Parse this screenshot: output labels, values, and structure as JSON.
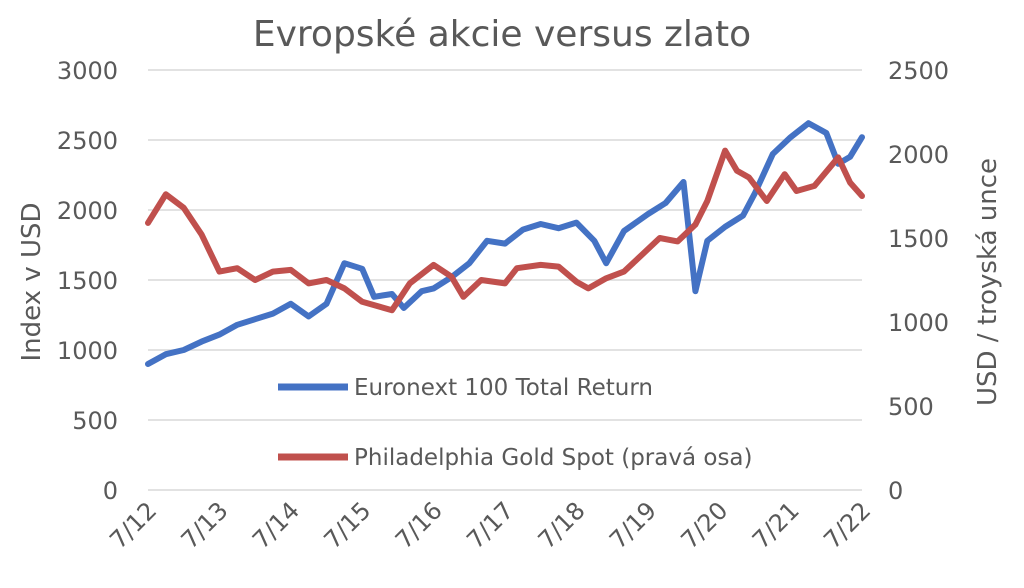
{
  "chart_data": {
    "type": "line",
    "title": "Evropské akcie versus zlato",
    "ylabel": "Index v USD",
    "y2label": "USD / troyská unce",
    "ylim": [
      0,
      3000
    ],
    "y2lim": [
      0,
      2500
    ],
    "yticks": [
      "0",
      "500",
      "1000",
      "1500",
      "2000",
      "2500",
      "3000"
    ],
    "y2ticks": [
      "0",
      "500",
      "1000",
      "1500",
      "2000",
      "2500"
    ],
    "xlim": [
      "2012-07",
      "2022-07"
    ],
    "xticks": [
      "7/12",
      "7/13",
      "7/14",
      "7/15",
      "7/16",
      "7/17",
      "7/18",
      "7/19",
      "7/20",
      "7/21",
      "7/22"
    ],
    "grid": "horizontal",
    "legend_position": "inside-bottom-center",
    "series": [
      {
        "name": "Euronext 100 Total Return",
        "axis": "left",
        "color": "#4472C4",
        "points": [
          [
            "2012-07",
            900
          ],
          [
            "2012-10",
            970
          ],
          [
            "2013-01",
            1000
          ],
          [
            "2013-04",
            1060
          ],
          [
            "2013-07",
            1110
          ],
          [
            "2013-10",
            1180
          ],
          [
            "2014-01",
            1220
          ],
          [
            "2014-04",
            1260
          ],
          [
            "2014-07",
            1330
          ],
          [
            "2014-10",
            1240
          ],
          [
            "2015-01",
            1330
          ],
          [
            "2015-04",
            1620
          ],
          [
            "2015-07",
            1580
          ],
          [
            "2015-09",
            1380
          ],
          [
            "2015-12",
            1400
          ],
          [
            "2016-02",
            1300
          ],
          [
            "2016-05",
            1420
          ],
          [
            "2016-07",
            1440
          ],
          [
            "2016-10",
            1520
          ],
          [
            "2017-01",
            1620
          ],
          [
            "2017-04",
            1780
          ],
          [
            "2017-07",
            1760
          ],
          [
            "2017-10",
            1860
          ],
          [
            "2018-01",
            1900
          ],
          [
            "2018-04",
            1870
          ],
          [
            "2018-07",
            1910
          ],
          [
            "2018-10",
            1780
          ],
          [
            "2018-12",
            1620
          ],
          [
            "2019-03",
            1850
          ],
          [
            "2019-07",
            1970
          ],
          [
            "2019-10",
            2050
          ],
          [
            "2020-01",
            2200
          ],
          [
            "2020-03",
            1420
          ],
          [
            "2020-05",
            1780
          ],
          [
            "2020-08",
            1880
          ],
          [
            "2020-11",
            1960
          ],
          [
            "2021-01",
            2120
          ],
          [
            "2021-04",
            2400
          ],
          [
            "2021-07",
            2520
          ],
          [
            "2021-10",
            2620
          ],
          [
            "2022-01",
            2550
          ],
          [
            "2022-03",
            2330
          ],
          [
            "2022-05",
            2380
          ],
          [
            "2022-07",
            2520
          ]
        ]
      },
      {
        "name": "Philadelphia Gold Spot (pravá osa)",
        "axis": "right",
        "color": "#C0504D",
        "points": [
          [
            "2012-07",
            1590
          ],
          [
            "2012-10",
            1760
          ],
          [
            "2013-01",
            1680
          ],
          [
            "2013-04",
            1520
          ],
          [
            "2013-07",
            1300
          ],
          [
            "2013-10",
            1320
          ],
          [
            "2014-01",
            1250
          ],
          [
            "2014-04",
            1300
          ],
          [
            "2014-07",
            1310
          ],
          [
            "2014-10",
            1230
          ],
          [
            "2015-01",
            1250
          ],
          [
            "2015-04",
            1200
          ],
          [
            "2015-07",
            1120
          ],
          [
            "2015-12",
            1070
          ],
          [
            "2016-03",
            1230
          ],
          [
            "2016-07",
            1340
          ],
          [
            "2016-10",
            1270
          ],
          [
            "2016-12",
            1150
          ],
          [
            "2017-03",
            1250
          ],
          [
            "2017-07",
            1230
          ],
          [
            "2017-09",
            1320
          ],
          [
            "2018-01",
            1340
          ],
          [
            "2018-04",
            1330
          ],
          [
            "2018-07",
            1240
          ],
          [
            "2018-09",
            1200
          ],
          [
            "2018-12",
            1260
          ],
          [
            "2019-03",
            1300
          ],
          [
            "2019-06",
            1400
          ],
          [
            "2019-09",
            1500
          ],
          [
            "2019-12",
            1480
          ],
          [
            "2020-03",
            1580
          ],
          [
            "2020-05",
            1720
          ],
          [
            "2020-08",
            2020
          ],
          [
            "2020-10",
            1900
          ],
          [
            "2020-12",
            1860
          ],
          [
            "2021-03",
            1720
          ],
          [
            "2021-06",
            1880
          ],
          [
            "2021-08",
            1780
          ],
          [
            "2021-11",
            1810
          ],
          [
            "2022-03",
            1980
          ],
          [
            "2022-05",
            1830
          ],
          [
            "2022-07",
            1750
          ]
        ]
      }
    ]
  }
}
